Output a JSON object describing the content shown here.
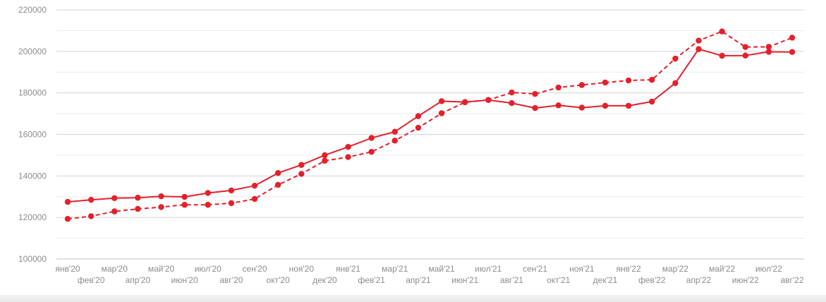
{
  "chart_data": {
    "type": "line",
    "title": "",
    "xlabel": "",
    "ylabel": "",
    "ylim": [
      100000,
      220000
    ],
    "yticks": [
      100000,
      120000,
      140000,
      160000,
      180000,
      200000,
      220000
    ],
    "ytick_labels": [
      "100000",
      "120000",
      "140000",
      "160000",
      "180000",
      "200000",
      "220000"
    ],
    "grid": true,
    "categories": [
      "янв'20",
      "фев'20",
      "мар'20",
      "апр'20",
      "май'20",
      "июн'20",
      "июл'20",
      "авг'20",
      "сен'20",
      "окт'20",
      "ноя'20",
      "дек'20",
      "янв'21",
      "фев'21",
      "мар'21",
      "апр'21",
      "май'21",
      "июн'21",
      "июл'21",
      "авг'21",
      "сен'21",
      "окт'21",
      "ноя'21",
      "дек'21",
      "янв'22",
      "фев'22",
      "мар'22",
      "апр'22",
      "май'22",
      "июн'22",
      "июл'22",
      "авг'22"
    ],
    "series": [
      {
        "line_style": "solid",
        "color": "#e3202b",
        "values": [
          127500,
          128500,
          129300,
          129500,
          130200,
          129900,
          131800,
          133000,
          135300,
          141400,
          145300,
          150000,
          154000,
          158300,
          161300,
          168800,
          176000,
          175600,
          176600,
          175100,
          172700,
          174000,
          172900,
          173800,
          173800,
          175800,
          184700,
          201100,
          197900,
          198000,
          199800,
          199700
        ]
      },
      {
        "line_style": "dashed",
        "color": "#e3202b",
        "values": [
          119300,
          120600,
          122900,
          124100,
          125000,
          126100,
          126100,
          126900,
          128900,
          135700,
          141000,
          147300,
          149100,
          151600,
          157000,
          163200,
          170200,
          175500,
          176600,
          180200,
          179500,
          182600,
          183800,
          185000,
          186000,
          186300,
          196500,
          205200,
          209600,
          202100,
          202200,
          206600
        ]
      }
    ]
  }
}
